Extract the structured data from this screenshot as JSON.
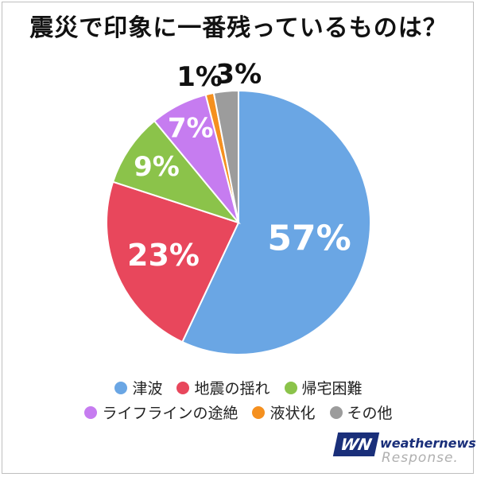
{
  "chart_data": {
    "type": "pie",
    "title": "震災で印象に一番残っているものは？",
    "categories": [
      "津波",
      "地震の揺れ",
      "帰宅困難",
      "ライフラインの途絶",
      "液状化",
      "その他"
    ],
    "values": [
      57,
      23,
      9,
      7,
      1,
      3
    ],
    "value_labels": [
      "57%",
      "23%",
      "9%",
      "7%",
      "1%",
      "3%"
    ],
    "colors": [
      "#6aa6e4",
      "#e8475c",
      "#8bc34a",
      "#c67cf0",
      "#f5901f",
      "#9c9c9c"
    ],
    "start": "12 o'clock",
    "direction": "clockwise",
    "legend_position": "bottom"
  },
  "logo": {
    "mark": "WN",
    "brand": "weathernews",
    "partner": "Response."
  }
}
